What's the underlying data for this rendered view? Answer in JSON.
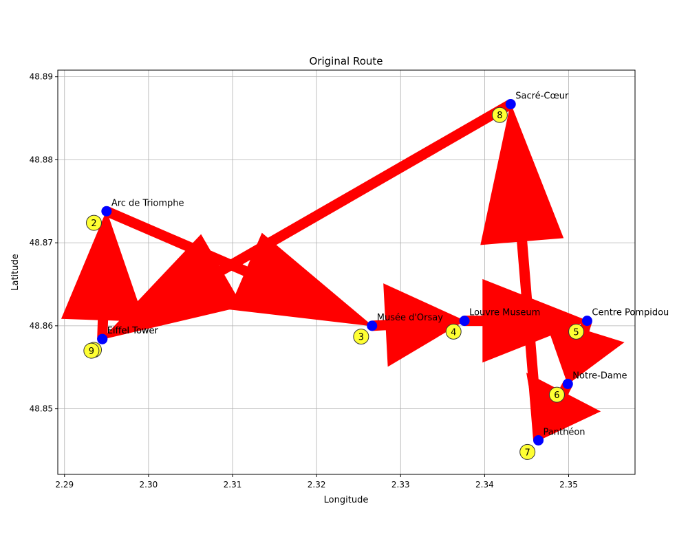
{
  "chart_data": {
    "type": "scatter",
    "title": "Original Route",
    "xlabel": "Longitude",
    "ylabel": "Latitude",
    "xlim": [
      2.2892,
      2.3579
    ],
    "ylim": [
      48.8421,
      48.8908
    ],
    "xticks": [
      "2.29",
      "2.30",
      "2.31",
      "2.32",
      "2.33",
      "2.34",
      "2.35"
    ],
    "xtick_values": [
      2.29,
      2.3,
      2.31,
      2.32,
      2.33,
      2.34,
      2.35
    ],
    "yticks": [
      "48.85",
      "48.86",
      "48.87",
      "48.88",
      "48.89"
    ],
    "ytick_values": [
      48.85,
      48.86,
      48.87,
      48.88,
      48.89
    ],
    "grid": true,
    "marker_color": "#0000ff",
    "route_color": "#ff0000",
    "badge_color": "#ffff33",
    "locations": [
      {
        "name": "Eiffel Tower",
        "lon": 2.2945,
        "lat": 48.8584
      },
      {
        "name": "Arc de Triomphe",
        "lon": 2.295,
        "lat": 48.8738
      },
      {
        "name": "Musée d'Orsay",
        "lon": 2.3266,
        "lat": 48.86
      },
      {
        "name": "Louvre Museum",
        "lon": 2.3376,
        "lat": 48.8606
      },
      {
        "name": "Centre Pompidou",
        "lon": 2.3522,
        "lat": 48.8606
      },
      {
        "name": "Notre-Dame",
        "lon": 2.3499,
        "lat": 48.853
      },
      {
        "name": "Panthéon",
        "lon": 2.3464,
        "lat": 48.8462
      },
      {
        "name": "Sacré-Cœur",
        "lon": 2.3431,
        "lat": 48.8867
      },
      {
        "name": "Eiffel Tower",
        "lon": 2.2945,
        "lat": 48.8584
      }
    ],
    "order_labels": [
      "1",
      "2",
      "3",
      "4",
      "5",
      "6",
      "7",
      "8",
      "9"
    ],
    "order_label_positions": [
      {
        "lon": 2.2935,
        "lat": 48.8571
      },
      {
        "lon": 2.2935,
        "lat": 48.8724
      },
      {
        "lon": 2.3253,
        "lat": 48.8587
      },
      {
        "lon": 2.3363,
        "lat": 48.8593
      },
      {
        "lon": 2.3509,
        "lat": 48.8593
      },
      {
        "lon": 2.3486,
        "lat": 48.8517
      },
      {
        "lon": 2.3451,
        "lat": 48.8448
      },
      {
        "lon": 2.3418,
        "lat": 48.8854
      },
      {
        "lon": 2.2932,
        "lat": 48.857
      }
    ]
  }
}
